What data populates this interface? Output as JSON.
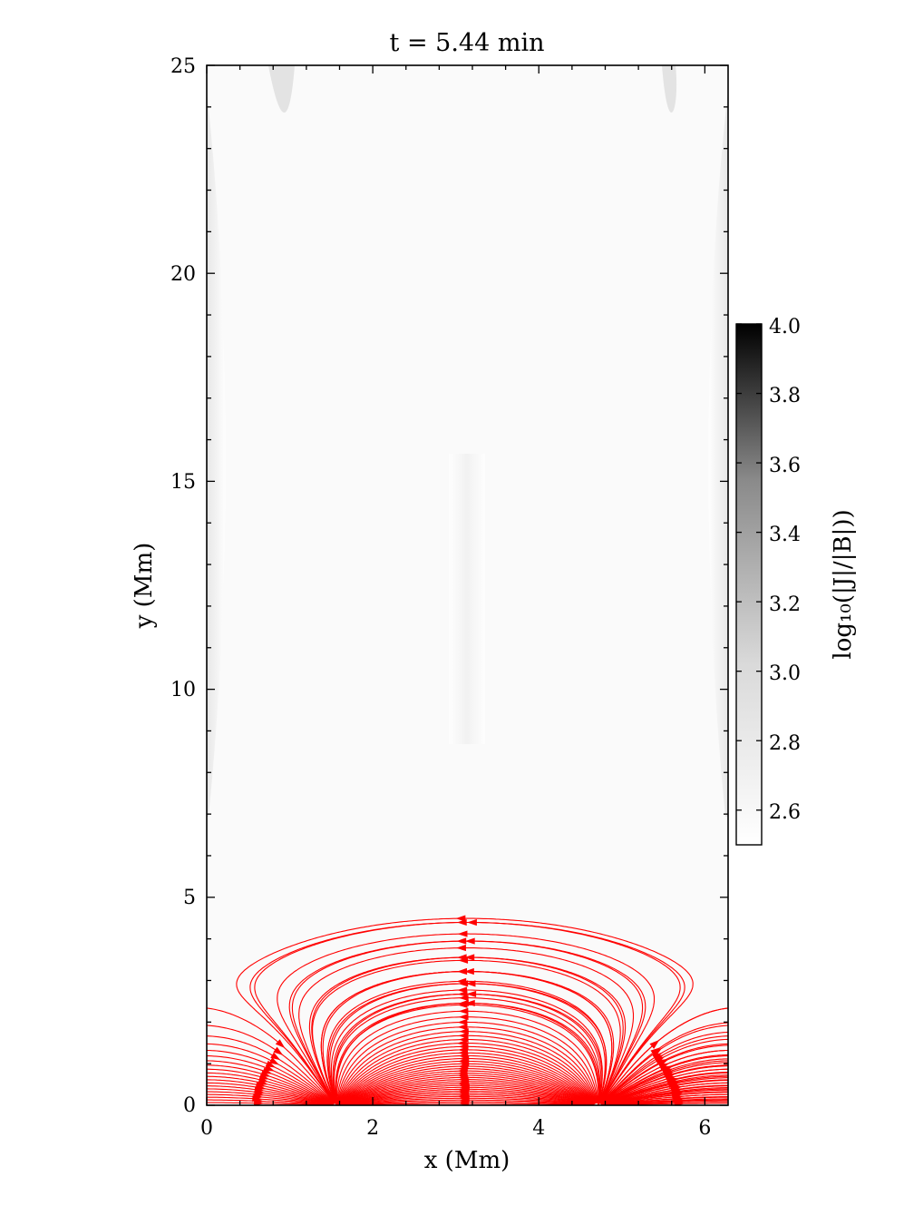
{
  "chart_data": {
    "type": "streamplot",
    "title": "t = 5.44 min",
    "xlabel": "x (Mm)",
    "ylabel": "y (Mm)",
    "xlim": [
      0,
      6.28
    ],
    "ylim": [
      0,
      25
    ],
    "x_ticks": [
      0,
      2,
      4,
      6
    ],
    "x_tick_labels": [
      "0",
      "2",
      "4",
      "6"
    ],
    "y_ticks": [
      0,
      5,
      10,
      15,
      20,
      25
    ],
    "y_tick_labels": [
      "0",
      "5",
      "10",
      "15",
      "20",
      "25"
    ],
    "field_line_color": "#ff0000",
    "field": {
      "description_source": "magnetic field streamlines between two footpoint sources",
      "sources": [
        {
          "x": 1.57,
          "y": 0,
          "sign": -1
        },
        {
          "x": 4.71,
          "y": 0,
          "sign": 1
        }
      ],
      "arcade_center_x": 3.14
    },
    "background": {
      "quantity": "log10(|J|/|B|)",
      "colormap": "gray_r",
      "vmin": 2.5,
      "vmax": 4.0
    },
    "colorbar": {
      "label": "log₁₀(|J|/|B|))",
      "ticks": [
        2.6,
        2.8,
        3.0,
        3.2,
        3.4,
        3.6,
        3.8,
        4.0
      ],
      "tick_labels": [
        "2.6",
        "2.8",
        "3.0",
        "3.2",
        "3.4",
        "3.6",
        "3.8",
        "4.0"
      ]
    }
  }
}
